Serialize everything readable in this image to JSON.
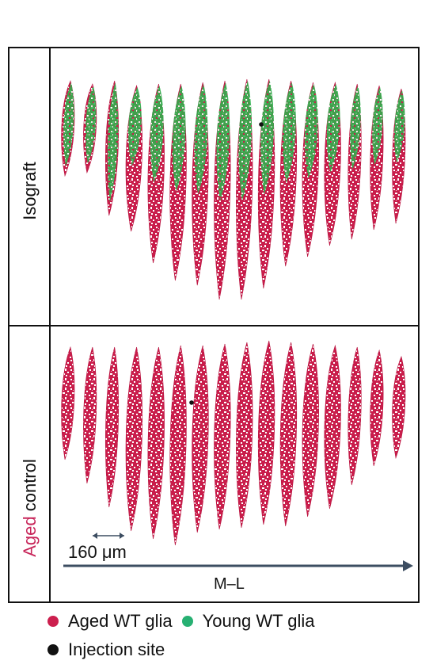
{
  "panels": {
    "top_label": "Isograft",
    "bottom_label_highlight": "Aged",
    "bottom_label_rest": " control"
  },
  "scale_bar": {
    "label": "160 μm"
  },
  "axis": {
    "label": "M–L"
  },
  "legend": {
    "items": [
      {
        "label": "Aged WT glia",
        "color": "#cc1f4e"
      },
      {
        "label": "Young WT glia",
        "color": "#27b072"
      },
      {
        "label": "Injection site",
        "color": "#111111"
      }
    ]
  },
  "colors": {
    "aged": "#cc1f4e",
    "young": "#27b072",
    "injection": "#111111",
    "aged_label": "#c8265a",
    "arrow": "#3c4d61"
  },
  "sections": {
    "count_per_row": 16
  }
}
